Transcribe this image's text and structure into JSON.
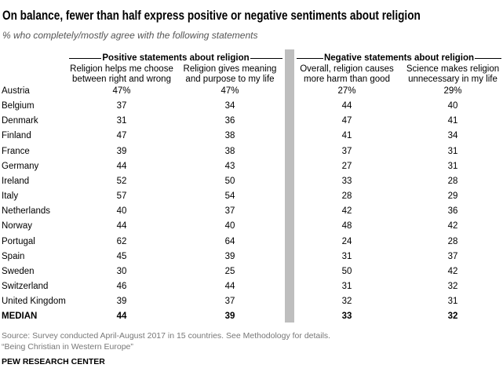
{
  "title": "On balance, fewer than half express positive or negative sentiments about religion",
  "subtitle": "% who completely/mostly agree with the following statements",
  "chart_data": {
    "type": "table",
    "groups": [
      {
        "label": "Positive statements about religion",
        "columns": [
          "Religion helps me choose between right and wrong",
          "Religion gives meaning and purpose to my life"
        ]
      },
      {
        "label": "Negative statements about religion",
        "columns": [
          "Overall, religion causes more harm than good",
          "Science makes religion unnecessary in my life"
        ]
      }
    ],
    "columns": [
      [
        "Religion helps me choose",
        "between right and wrong"
      ],
      [
        "Religion gives meaning",
        "and purpose to my life"
      ],
      [
        "Overall, religion causes",
        "more harm than good"
      ],
      [
        "Science makes religion",
        "unnecessary in my life"
      ]
    ],
    "rows": [
      {
        "country": "Austria",
        "values": [
          "47%",
          "47%",
          "27%",
          "29%"
        ]
      },
      {
        "country": "Belgium",
        "values": [
          "37",
          "34",
          "44",
          "40"
        ]
      },
      {
        "country": "Denmark",
        "values": [
          "31",
          "36",
          "47",
          "41"
        ]
      },
      {
        "country": "Finland",
        "values": [
          "47",
          "38",
          "41",
          "34"
        ]
      },
      {
        "country": "France",
        "values": [
          "39",
          "38",
          "37",
          "31"
        ]
      },
      {
        "country": "Germany",
        "values": [
          "44",
          "43",
          "27",
          "31"
        ]
      },
      {
        "country": "Ireland",
        "values": [
          "52",
          "50",
          "33",
          "28"
        ]
      },
      {
        "country": "Italy",
        "values": [
          "57",
          "54",
          "28",
          "29"
        ]
      },
      {
        "country": "Netherlands",
        "values": [
          "40",
          "37",
          "42",
          "36"
        ]
      },
      {
        "country": "Norway",
        "values": [
          "44",
          "40",
          "48",
          "42"
        ]
      },
      {
        "country": "Portugal",
        "values": [
          "62",
          "64",
          "24",
          "28"
        ]
      },
      {
        "country": "Spain",
        "values": [
          "45",
          "39",
          "31",
          "37"
        ]
      },
      {
        "country": "Sweden",
        "values": [
          "30",
          "25",
          "50",
          "42"
        ]
      },
      {
        "country": "Switzerland",
        "values": [
          "46",
          "44",
          "31",
          "32"
        ]
      },
      {
        "country": "United Kingdom",
        "values": [
          "39",
          "37",
          "32",
          "31"
        ]
      }
    ],
    "median": {
      "label": "MEDIAN",
      "values": [
        "44",
        "39",
        "33",
        "32"
      ]
    }
  },
  "source_line1": "Source: Survey conducted April-August 2017 in 15 countries. See Methodology for details.",
  "source_line2": "“Being Christian in Western Europe”",
  "brand": "PEW RESEARCH CENTER"
}
